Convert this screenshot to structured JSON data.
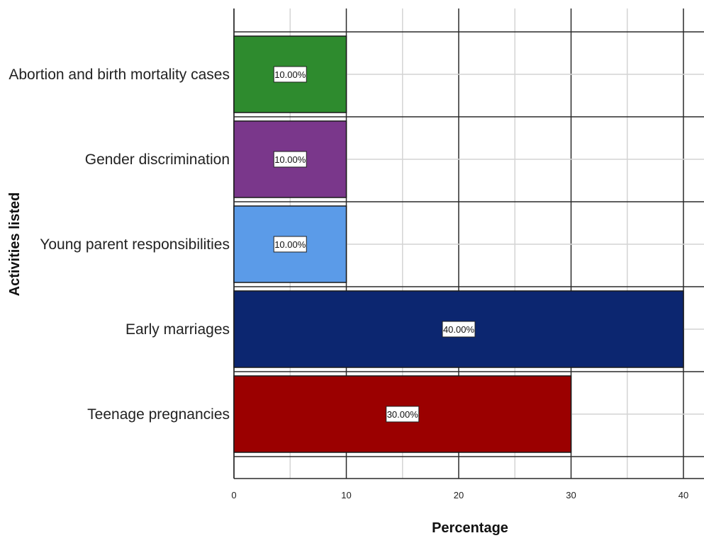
{
  "chart_data": {
    "type": "bar",
    "orientation": "horizontal",
    "categories": [
      "Abortion and birth mortality cases",
      "Gender discrimination",
      "Young parent responsibilities",
      "Early marriages",
      "Teenage pregnancies"
    ],
    "values": [
      10,
      10,
      10,
      40,
      30
    ],
    "data_labels": [
      "10.00%",
      "10.00%",
      "10.00%",
      "40.00%",
      "30.00%"
    ],
    "colors": [
      "#2e8b2e",
      "#7a378b",
      "#5b9be8",
      "#0c2670",
      "#9b0000"
    ],
    "xlabel": "Percentage",
    "ylabel": "Activities listed",
    "xticks": [
      0,
      10,
      20,
      30,
      40
    ],
    "xlim": [
      0,
      42
    ],
    "grid": true
  }
}
